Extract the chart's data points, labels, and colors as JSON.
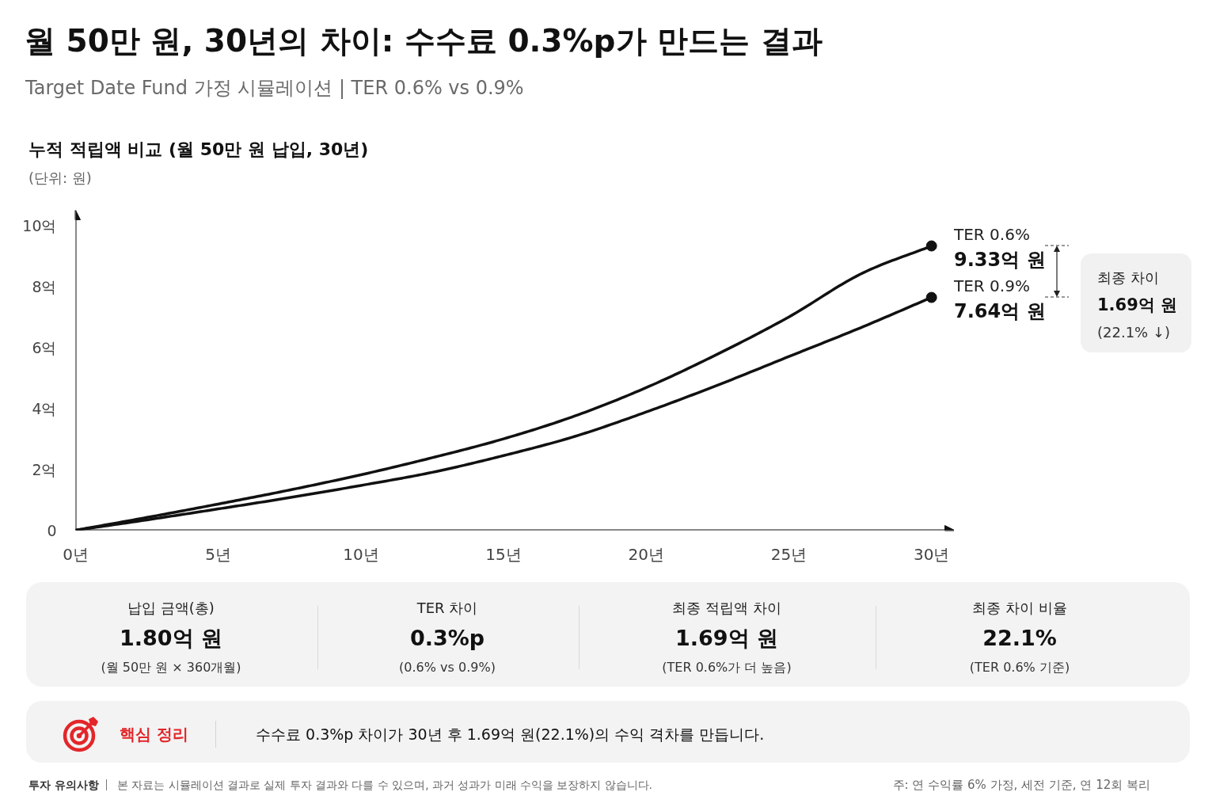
{
  "chart_data": {
    "type": "line",
    "title": "월 50만 원, 30년의 차이: 수수료 0.3%p가 만드는 결과",
    "subtitle": "Target Date Fund 가정 시뮬레이션 | TER 0.6% vs 0.9%",
    "ylabel": "(단위: 원)",
    "x": [
      0,
      2.5,
      5,
      7.5,
      10,
      12.5,
      15,
      17.5,
      20,
      22.5,
      25,
      27.5,
      30
    ],
    "xlim": [
      0,
      30.8
    ],
    "xticks": [
      {
        "value": 0,
        "label": "0년"
      },
      {
        "value": 5,
        "label": "5년"
      },
      {
        "value": 10,
        "label": "10년"
      },
      {
        "value": 15,
        "label": "15년"
      },
      {
        "value": 20,
        "label": "20년"
      },
      {
        "value": 25,
        "label": "25년"
      },
      {
        "value": 30,
        "label": "30년"
      }
    ],
    "ylim": [
      0,
      10.5
    ],
    "yticks": [
      0,
      {
        "value": 2,
        "label": "2억"
      },
      {
        "value": 4,
        "label": "4억"
      },
      {
        "value": 6,
        "label": "6억"
      },
      {
        "value": 8,
        "label": "8억"
      },
      {
        "value": 10,
        "label": "10억"
      }
    ],
    "line_style": "solid",
    "series": [
      {
        "name": "TER 0.6%",
        "color": "#111111",
        "values": [
          0,
          0.42,
          0.86,
          1.32,
          1.82,
          2.38,
          3.0,
          3.75,
          4.68,
          5.78,
          7.0,
          8.4,
          9.33
        ],
        "value_labels": [
          null,
          null,
          null,
          null,
          null,
          null,
          null,
          null,
          null,
          null,
          null,
          null,
          "9.33억 원"
        ]
      },
      {
        "name": "TER 0.9%",
        "color": "#111111",
        "values": [
          0,
          0.34,
          0.7,
          1.07,
          1.47,
          1.9,
          2.45,
          3.08,
          3.88,
          4.76,
          5.7,
          6.64,
          7.64
        ],
        "value_labels": [
          null,
          null,
          null,
          null,
          null,
          null,
          null,
          null,
          null,
          null,
          null,
          null,
          "7.64억 원"
        ]
      },
      {
        "type": "scatter",
        "marker": "circle",
        "color": "#111111",
        "x": [
          30,
          30
        ],
        "values": [
          9.33,
          7.64
        ]
      }
    ],
    "annotations": [
      "누적 적립액 비교 (월 50만 원 납입, 30년)",
      "최종 차이",
      "1.69억 원",
      "(22.1% ↓)",
      "납입 금액(총)",
      "1.80억 원",
      "(월 50만 원 × 360개월)",
      "TER 차이",
      "0.3%p",
      "(0.6% vs 0.9%)",
      "최종 적립액 차이",
      "1.69억 원",
      "(TER 0.6%가 더 높음)",
      "최종 차이 비율",
      "22.1%",
      "(TER 0.6% 기준)",
      "핵심 정리",
      "수수료 0.3%p 차이가 30년 후 1.69억 원(22.1%)의 수익 격차를 만듭니다.",
      "투자 유의사항",
      "본 자료는 시뮬레이션 결과로 실제 투자 결과와 다를 수 있으며, 과거 성과가 미래 수익을 보장하지 않습니다.",
      "주: 연 수익률 6% 가정, 세전 기준, 연 12회 복리"
    ]
  }
}
